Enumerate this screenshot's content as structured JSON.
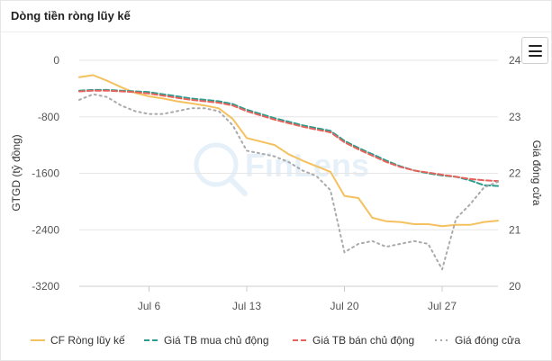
{
  "header": {
    "title": "Dòng tiền ròng lũy kế"
  },
  "watermark": {
    "text": "FinLens"
  },
  "chart_data": {
    "type": "line",
    "categories": [
      "Jul 1",
      "Jul 2",
      "Jul 3",
      "Jul 4",
      "Jul 5",
      "Jul 6",
      "Jul 7",
      "Jul 8",
      "Jul 9",
      "Jul 10",
      "Jul 11",
      "Jul 12",
      "Jul 13",
      "Jul 14",
      "Jul 15",
      "Jul 16",
      "Jul 17",
      "Jul 18",
      "Jul 19",
      "Jul 20",
      "Jul 21",
      "Jul 22",
      "Jul 23",
      "Jul 24",
      "Jul 25",
      "Jul 26",
      "Jul 27",
      "Jul 28",
      "Jul 29",
      "Jul 30",
      "Jul 31"
    ],
    "x_ticks": [
      "Jul 6",
      "Jul 13",
      "Jul 20",
      "Jul 27"
    ],
    "y_left": {
      "label": "GTGD (tỷ đồng)",
      "min": -3200,
      "max": 0,
      "ticks": [
        "0",
        "-800",
        "-1600",
        "-2400",
        "-3200"
      ]
    },
    "y_right": {
      "label": "Giá đóng cửa",
      "min": 20,
      "max": 24,
      "ticks": [
        "24",
        "23",
        "22",
        "21",
        "20"
      ]
    },
    "grid": true,
    "legend_position": "bottom",
    "series": [
      {
        "name": "CF Ròng lũy kế",
        "axis": "left",
        "style": "solid",
        "color": "#f5c15f",
        "values": [
          -240,
          -210,
          -290,
          -380,
          -460,
          -510,
          -540,
          -580,
          -610,
          -640,
          -680,
          -830,
          -1100,
          -1150,
          -1200,
          -1330,
          -1420,
          -1500,
          -1580,
          -1920,
          -1950,
          -2230,
          -2280,
          -2290,
          -2320,
          -2320,
          -2350,
          -2330,
          -2330,
          -2290,
          -2270
        ]
      },
      {
        "name": "Giá TB mua chủ động",
        "axis": "left",
        "style": "dashed",
        "color": "#2a9d8f",
        "values": [
          -430,
          -420,
          -420,
          -430,
          -440,
          -450,
          -480,
          -510,
          -540,
          -560,
          -580,
          -620,
          -700,
          -760,
          -820,
          -870,
          -920,
          -960,
          -1000,
          -1140,
          -1240,
          -1330,
          -1420,
          -1500,
          -1560,
          -1600,
          -1630,
          -1650,
          -1700,
          -1770,
          -1780
        ]
      },
      {
        "name": "Giá TB bán chủ động",
        "axis": "left",
        "style": "dashed",
        "color": "#e8625a",
        "values": [
          -440,
          -430,
          -430,
          -440,
          -450,
          -470,
          -500,
          -530,
          -560,
          -580,
          -600,
          -640,
          -720,
          -780,
          -840,
          -890,
          -940,
          -980,
          -1020,
          -1160,
          -1260,
          -1350,
          -1440,
          -1510,
          -1560,
          -1590,
          -1620,
          -1650,
          -1680,
          -1700,
          -1710
        ]
      },
      {
        "name": "Giá đóng cửa",
        "axis": "right",
        "style": "dotted",
        "color": "#aaaaaa",
        "values": [
          23.3,
          23.4,
          23.35,
          23.2,
          23.1,
          23.05,
          23.05,
          23.1,
          23.15,
          23.15,
          23.1,
          22.85,
          22.4,
          22.35,
          22.3,
          22.2,
          22.05,
          21.95,
          21.7,
          20.6,
          20.75,
          20.8,
          20.7,
          20.75,
          20.8,
          20.75,
          20.3,
          21.2,
          21.45,
          21.75,
          21.85
        ]
      }
    ]
  }
}
